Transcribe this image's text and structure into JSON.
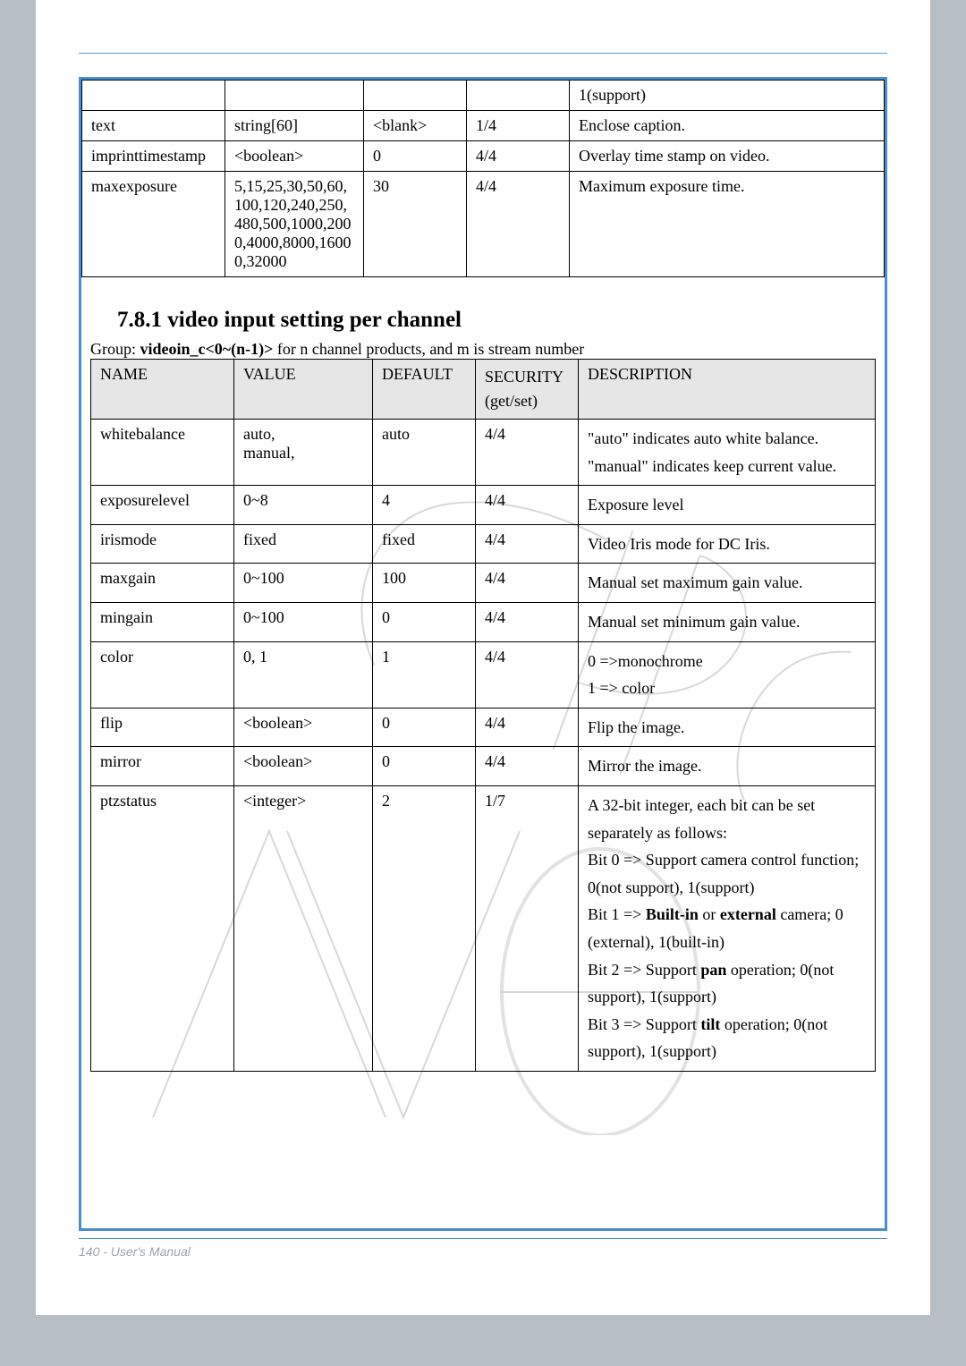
{
  "brand": "VIVOTEK",
  "footer": "140 - User's Manual",
  "table1": {
    "rows": [
      {
        "name": "",
        "value": "",
        "default": "",
        "security": "",
        "desc": "1(support)"
      },
      {
        "name": "text",
        "value": "string[60]",
        "default": "<blank>",
        "security": "1/4",
        "desc": "Enclose caption."
      },
      {
        "name": "imprinttimestamp",
        "value": "<boolean>",
        "default": "0",
        "security": "4/4",
        "desc": "Overlay time stamp on video."
      },
      {
        "name": "maxexposure",
        "value": "5,15,25,30,50,60,100,120,240,250,480,500,1000,2000,4000,8000,16000,32000",
        "default": "30",
        "security": "4/4",
        "desc": "Maximum exposure time."
      }
    ]
  },
  "section_title": "7.8.1 video input setting per channel",
  "group_line_prefix": "Group: ",
  "group_line_bold": "videoin_c<0~(n-1)>",
  "group_line_suffix": " for n channel products, and m is stream number",
  "table2": {
    "head": {
      "name": "NAME",
      "value": "VALUE",
      "default": "DEFAULT",
      "security_l1": "SECURITY",
      "security_l2": "(get/set)",
      "desc": "DESCRIPTION"
    },
    "rows": [
      {
        "name": "whitebalance",
        "value": "auto,\nmanual,",
        "default": "auto",
        "security": "4/4",
        "desc": "\"auto\" indicates auto white balance.\n\"manual\" indicates keep current value."
      },
      {
        "name": "exposurelevel",
        "value": "0~8",
        "default": "4",
        "security": "4/4",
        "desc": "Exposure level"
      },
      {
        "name": "irismode",
        "value": "fixed",
        "default": "fixed",
        "security": "4/4",
        "desc": "Video Iris mode for DC Iris."
      },
      {
        "name": "maxgain",
        "value": "0~100",
        "default": "100",
        "security": "4/4",
        "desc": "Manual set maximum gain value."
      },
      {
        "name": "mingain",
        "value": "0~100",
        "default": "0",
        "security": "4/4",
        "desc": "Manual set minimum gain value."
      },
      {
        "name": "color",
        "value": "0, 1",
        "default": "1",
        "security": "4/4",
        "desc": "0 =>monochrome\n1 => color"
      },
      {
        "name": "flip",
        "value": "<boolean>",
        "default": "0",
        "security": "4/4",
        "desc": "Flip the image."
      },
      {
        "name": "mirror",
        "value": "<boolean>",
        "default": "0",
        "security": "4/4",
        "desc": "Mirror the image."
      },
      {
        "name": "ptzstatus",
        "value": "<integer>",
        "default": "2",
        "security": "1/7",
        "desc_html": "A 32-bit integer, each bit can be set separately as follows:<br>Bit 0 =&gt; Support camera control function; 0(not support), 1(support)<br>Bit 1 =&gt; <b>Built-in</b> or <b>external</b> camera; 0 (external), 1(built-in)<br>Bit 2 =&gt; Support <b>pan</b> operation; 0(not support), 1(support)<br>Bit 3 =&gt; Support <b>tilt</b> operation; 0(not support), 1(support)"
      }
    ]
  },
  "colors": {
    "page_bg": "#b8bfc4",
    "frame_border": "#4a8fc9",
    "header_row_bg": "#e6e6e6",
    "watermark": "#d8d8d8"
  }
}
